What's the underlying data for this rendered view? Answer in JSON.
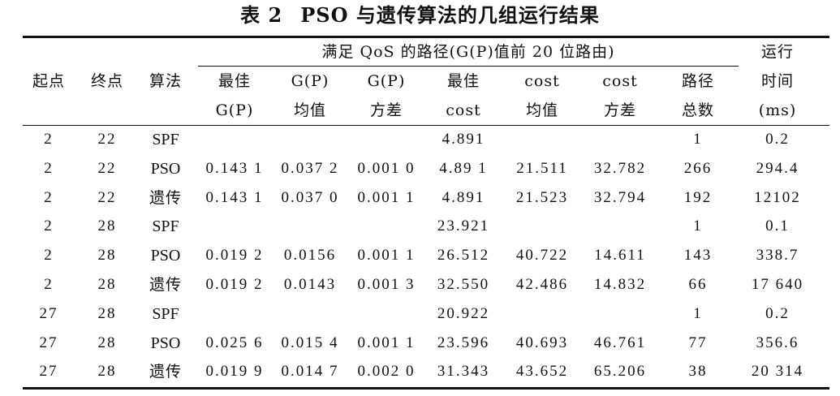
{
  "title": {
    "prefix": "表 2",
    "text": "PSO 与遗传算法的几组运行结果"
  },
  "header": {
    "qos_group": "满足 QoS 的路径(G(P)值前 20 位路由)",
    "runtime_line1": "运行",
    "runtime_line2": "时间",
    "runtime_line3": "(ms)",
    "col_start": "起点",
    "col_end": "终点",
    "col_algo": "算法",
    "best_gp_line1": "最佳",
    "best_gp_line2": "G(P)",
    "gp_mean_line1": "G(P)",
    "gp_mean_line2": "均值",
    "gp_var_line1": "G(P)",
    "gp_var_line2": "方差",
    "best_cost_line1": "最佳",
    "best_cost_line2": "cost",
    "cost_mean_line1": "cost",
    "cost_mean_line2": "均值",
    "cost_var_line1": "cost",
    "cost_var_line2": "方差",
    "paths_line1": "路径",
    "paths_line2": "总数"
  },
  "rows": [
    {
      "start": "2",
      "end": "22",
      "algo": "SPF",
      "best_gp": "",
      "gp_mean": "",
      "gp_var": "",
      "best_cost": "4.891",
      "cost_mean": "",
      "cost_var": "",
      "paths": "1",
      "runtime": "0.2"
    },
    {
      "start": "2",
      "end": "22",
      "algo": "PSO",
      "best_gp": "0.143 1",
      "gp_mean": "0.037 2",
      "gp_var": "0.001 0",
      "best_cost": "4.89 1",
      "cost_mean": "21.511",
      "cost_var": "32.782",
      "paths": "266",
      "runtime": "294.4"
    },
    {
      "start": "2",
      "end": "22",
      "algo": "遗传",
      "best_gp": "0.143 1",
      "gp_mean": "0.037 0",
      "gp_var": "0.001 1",
      "best_cost": "4.891",
      "cost_mean": "21.523",
      "cost_var": "32.794",
      "paths": "192",
      "runtime": "12102"
    },
    {
      "start": "2",
      "end": "28",
      "algo": "SPF",
      "best_gp": "",
      "gp_mean": "",
      "gp_var": "",
      "best_cost": "23.921",
      "cost_mean": "",
      "cost_var": "",
      "paths": "1",
      "runtime": "0.1"
    },
    {
      "start": "2",
      "end": "28",
      "algo": "PSO",
      "best_gp": "0.019 2",
      "gp_mean": "0.0156",
      "gp_var": "0.001 1",
      "best_cost": "26.512",
      "cost_mean": "40.722",
      "cost_var": "14.611",
      "paths": "143",
      "runtime": "338.7"
    },
    {
      "start": "2",
      "end": "28",
      "algo": "遗传",
      "best_gp": "0.019 2",
      "gp_mean": "0.0143",
      "gp_var": "0.001 3",
      "best_cost": "32.550",
      "cost_mean": "42.486",
      "cost_var": "14.832",
      "paths": "66",
      "runtime": "17 640"
    },
    {
      "start": "27",
      "end": "28",
      "algo": "SPF",
      "best_gp": "",
      "gp_mean": "",
      "gp_var": "",
      "best_cost": "20.922",
      "cost_mean": "",
      "cost_var": "",
      "paths": "1",
      "runtime": "0.2"
    },
    {
      "start": "27",
      "end": "28",
      "algo": "PSO",
      "best_gp": "0.025 6",
      "gp_mean": "0.015 4",
      "gp_var": "0.001 1",
      "best_cost": "23.596",
      "cost_mean": "40.693",
      "cost_var": "46.761",
      "paths": "77",
      "runtime": "356.6"
    },
    {
      "start": "27",
      "end": "28",
      "algo": "遗传",
      "best_gp": "0.019 9",
      "gp_mean": "0.014 7",
      "gp_var": "0.002 0",
      "best_cost": "31.343",
      "cost_mean": "43.652",
      "cost_var": "65.206",
      "paths": "38",
      "runtime": "20 314"
    }
  ]
}
